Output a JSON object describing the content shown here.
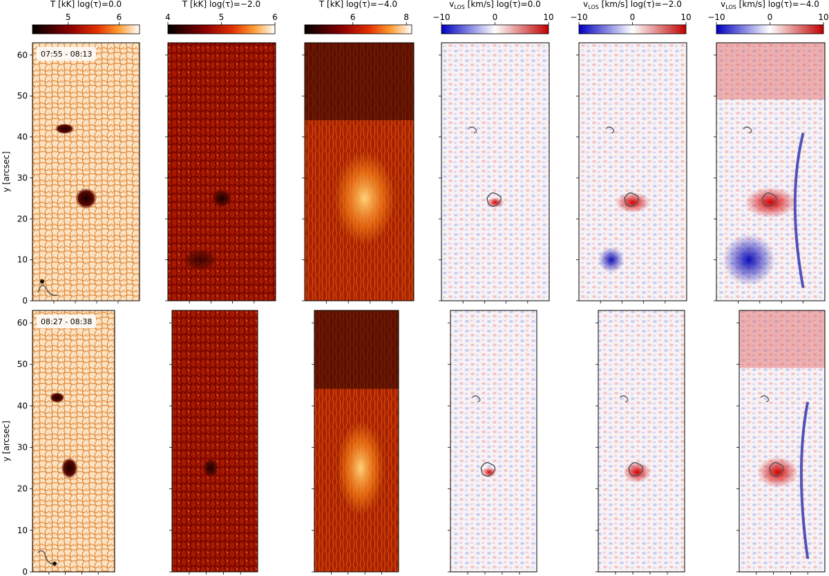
{
  "figure": {
    "colorbars": [
      {
        "panel_label": "T [kK] log(τ)=0.0",
        "ticks": [
          "5",
          "6"
        ],
        "tick_values": [
          5,
          6
        ],
        "range": [
          4.3,
          6.4
        ],
        "cmap": "heat"
      },
      {
        "panel_label": "T [kK] log(τ)=−2.0",
        "ticks": [
          "4",
          "5",
          "6"
        ],
        "tick_values": [
          4,
          5,
          6
        ],
        "range": [
          4,
          6
        ],
        "cmap": "heat"
      },
      {
        "panel_label": "T [kK] log(τ)=−4.0",
        "ticks": [
          "6",
          "8"
        ],
        "tick_values": [
          6,
          8
        ],
        "range": [
          4.2,
          8.2
        ],
        "cmap": "heat"
      },
      {
        "panel_label": "v",
        "panel_label_sub": "LOS",
        "panel_label_rest": " [km/s] log(τ)=0.0",
        "ticks": [
          "−10",
          "0",
          "10"
        ],
        "tick_values": [
          -10,
          0,
          10
        ],
        "range": [
          -10,
          10
        ],
        "cmap": "bwr"
      },
      {
        "panel_label": "v",
        "panel_label_sub": "LOS",
        "panel_label_rest": " [km/s] log(τ)=−2.0",
        "ticks": [
          "−10",
          "0",
          "10"
        ],
        "tick_values": [
          -10,
          0,
          10
        ],
        "range": [
          -10,
          10
        ],
        "cmap": "bwr"
      },
      {
        "panel_label": "v",
        "panel_label_sub": "LOS",
        "panel_label_rest": " [km/s] log(τ)=−4.0",
        "ticks": [
          "−10",
          "0",
          "10"
        ],
        "tick_values": [
          -10,
          0,
          10
        ],
        "range": [
          -10,
          10
        ],
        "cmap": "bwr"
      }
    ],
    "rows": [
      {
        "time_label": "07:55 - 08:13",
        "ylabel": "y [arcsec]"
      },
      {
        "time_label": "08:27 - 08:38",
        "ylabel": "y [arcsec]"
      }
    ],
    "colors": {
      "heat_dark": "#000000",
      "heat_red": "#b40000",
      "heat_orange": "#ff8c1a",
      "heat_white": "#ffffff",
      "bwr_blue": "#0000cc",
      "bwr_white": "#ffffff",
      "bwr_red": "#cc0000",
      "contour": "#555555"
    }
  },
  "chart_data": {
    "type": "heatmap",
    "ylabel": "y [arcsec]",
    "yticks": [
      0,
      10,
      20,
      30,
      40,
      50,
      60
    ],
    "ylim": [
      0,
      63
    ],
    "rows": [
      {
        "time_label": "07:55 - 08:13",
        "panels": [
          "T log(τ)=0.0",
          "T log(τ)=−2.0",
          "T log(τ)=−4.0",
          "vLOS log(τ)=0.0",
          "vLOS log(τ)=−2.0",
          "vLOS log(τ)=−4.0"
        ]
      },
      {
        "time_label": "08:27 - 08:38",
        "panels": [
          "T log(τ)=0.0",
          "T log(τ)=−2.0",
          "T log(τ)=−4.0",
          "vLOS log(τ)=0.0",
          "vLOS log(τ)=−2.0",
          "vLOS log(τ)=−4.0"
        ]
      }
    ],
    "features": {
      "sunspot_pore_y": 25,
      "small_pore_y": 42,
      "blueshift_patch_y": 10
    }
  }
}
